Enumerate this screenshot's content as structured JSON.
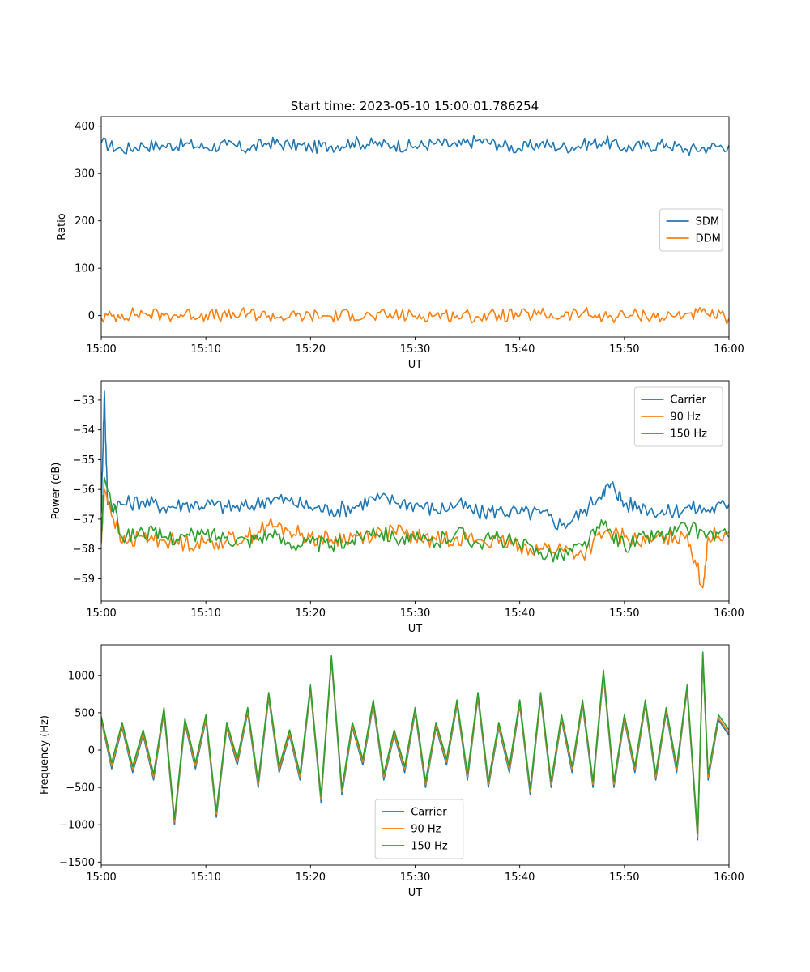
{
  "figure": {
    "title": "Start time: 2023-05-10 15:00:01.786254"
  },
  "colors": {
    "blue": "#1f77b4",
    "orange": "#ff7f0e",
    "green": "#2ca02c"
  },
  "chart_data": [
    {
      "type": "line",
      "title": "Start time: 2023-05-10 15:00:01.786254",
      "xlabel": "UT",
      "ylabel": "Ratio",
      "x_range": [
        "15:00",
        "16:00"
      ],
      "xticks": [
        "15:00",
        "15:10",
        "15:20",
        "15:30",
        "15:40",
        "15:50",
        "16:00"
      ],
      "ylim": [
        -45,
        420
      ],
      "yticks": [
        0,
        100,
        200,
        300,
        400
      ],
      "legend_position": "center-right",
      "grid": false,
      "series": [
        {
          "name": "SDM",
          "color": "#1f77b4",
          "x_minutes": [
            0,
            2,
            4,
            6,
            8,
            10,
            12,
            14,
            16,
            18,
            20,
            22,
            24,
            26,
            28,
            30,
            32,
            34,
            36,
            38,
            40,
            42,
            44,
            46,
            48,
            50,
            52,
            54,
            56,
            58,
            60
          ],
          "values": [
            365,
            350,
            360,
            358,
            362,
            355,
            360,
            352,
            365,
            360,
            355,
            358,
            366,
            362,
            360,
            357,
            364,
            358,
            370,
            361,
            352,
            363,
            355,
            360,
            368,
            354,
            358,
            362,
            350,
            355,
            360
          ]
        },
        {
          "name": "DDM",
          "color": "#ff7f0e",
          "x_minutes": [
            0,
            2,
            4,
            6,
            8,
            10,
            12,
            14,
            16,
            18,
            20,
            22,
            24,
            26,
            28,
            30,
            32,
            34,
            36,
            38,
            40,
            42,
            44,
            46,
            48,
            50,
            52,
            54,
            56,
            58,
            60
          ],
          "values": [
            -5,
            2,
            5,
            0,
            3,
            2,
            -2,
            4,
            0,
            -3,
            0,
            -2,
            3,
            -2,
            1,
            -1,
            2,
            0,
            -2,
            1,
            0,
            3,
            -1,
            5,
            -3,
            0,
            2,
            -4,
            5,
            2,
            -5
          ]
        }
      ]
    },
    {
      "type": "line",
      "xlabel": "UT",
      "ylabel": "Power (dB)",
      "x_range": [
        "15:00",
        "16:00"
      ],
      "xticks": [
        "15:00",
        "15:10",
        "15:20",
        "15:30",
        "15:40",
        "15:50",
        "16:00"
      ],
      "ylim": [
        -59.75,
        -52.35
      ],
      "yticks": [
        -53,
        -54,
        -55,
        -56,
        -57,
        -58,
        -59
      ],
      "legend_position": "upper-right",
      "grid": false,
      "series": [
        {
          "name": "Carrier",
          "color": "#1f77b4",
          "x_minutes": [
            0,
            0.3,
            0.6,
            2,
            4,
            6,
            8,
            10,
            12,
            14,
            16,
            18,
            20,
            22,
            24,
            26,
            28,
            30,
            32,
            34,
            36,
            38,
            40,
            42,
            44,
            46,
            48,
            49,
            50,
            52,
            54,
            56,
            58,
            60
          ],
          "values": [
            -56.8,
            -52.7,
            -56.5,
            -56.5,
            -56.4,
            -56.6,
            -56.5,
            -56.5,
            -56.6,
            -56.6,
            -56.3,
            -56.4,
            -56.6,
            -56.7,
            -56.6,
            -56.3,
            -56.4,
            -56.5,
            -56.7,
            -56.5,
            -56.8,
            -56.7,
            -56.8,
            -56.8,
            -57.2,
            -56.8,
            -56.0,
            -55.9,
            -56.5,
            -56.6,
            -56.8,
            -56.6,
            -56.7,
            -56.5
          ]
        },
        {
          "name": "90 Hz",
          "color": "#ff7f0e",
          "x_minutes": [
            0,
            0.3,
            2,
            4,
            6,
            8,
            10,
            12,
            14,
            16,
            18,
            20,
            22,
            24,
            26,
            28,
            30,
            32,
            34,
            36,
            38,
            40,
            42,
            44,
            46,
            48,
            50,
            52,
            54,
            56,
            57.5,
            58,
            60
          ],
          "values": [
            -57.8,
            -56.0,
            -57.8,
            -57.6,
            -57.7,
            -57.8,
            -57.8,
            -57.7,
            -57.6,
            -57.2,
            -57.4,
            -57.6,
            -57.7,
            -57.6,
            -57.5,
            -57.4,
            -57.6,
            -57.7,
            -57.6,
            -57.7,
            -57.8,
            -57.9,
            -58.0,
            -58.0,
            -58.2,
            -57.5,
            -57.6,
            -57.8,
            -57.6,
            -57.5,
            -59.3,
            -57.6,
            -57.4
          ]
        },
        {
          "name": "150 Hz",
          "color": "#2ca02c",
          "x_minutes": [
            0,
            0.3,
            2,
            4,
            6,
            8,
            10,
            12,
            14,
            16,
            18,
            20,
            22,
            24,
            26,
            28,
            30,
            32,
            34,
            36,
            38,
            40,
            42,
            44,
            46,
            48,
            50,
            52,
            54,
            56,
            58,
            60
          ],
          "values": [
            -57.8,
            -55.6,
            -57.6,
            -57.4,
            -57.6,
            -57.6,
            -57.5,
            -57.6,
            -57.7,
            -57.5,
            -57.8,
            -57.8,
            -57.9,
            -57.7,
            -57.3,
            -57.6,
            -57.7,
            -57.8,
            -57.4,
            -57.8,
            -57.6,
            -57.9,
            -58.1,
            -58.2,
            -57.9,
            -57.2,
            -57.9,
            -57.6,
            -57.5,
            -57.3,
            -57.5,
            -57.6
          ]
        }
      ]
    },
    {
      "type": "line",
      "xlabel": "UT",
      "ylabel": "Frequency (Hz)",
      "x_range": [
        "15:00",
        "16:00"
      ],
      "xticks": [
        "15:00",
        "15:10",
        "15:20",
        "15:30",
        "15:40",
        "15:50",
        "16:00"
      ],
      "ylim": [
        -1540,
        1410
      ],
      "yticks": [
        1000,
        500,
        0,
        -500,
        -1000,
        -1500
      ],
      "legend_position": "lower-center",
      "grid": false,
      "series": [
        {
          "name": "Carrier",
          "color": "#1f77b4",
          "x_minutes": [
            0,
            1,
            2,
            3,
            4,
            5,
            6,
            7,
            8,
            9,
            10,
            11,
            12,
            13,
            14,
            15,
            16,
            17,
            18,
            19,
            20,
            21,
            22,
            23,
            24,
            25,
            26,
            27,
            28,
            29,
            30,
            31,
            32,
            33,
            34,
            35,
            36,
            37,
            38,
            39,
            40,
            41,
            42,
            43,
            44,
            45,
            46,
            47,
            48,
            49,
            50,
            51,
            52,
            53,
            54,
            55,
            56,
            57,
            57.5,
            58,
            59,
            60
          ],
          "values": [
            400,
            -250,
            300,
            -300,
            200,
            -400,
            500,
            -1000,
            350,
            -250,
            400,
            -900,
            300,
            -200,
            500,
            -500,
            700,
            -300,
            200,
            -400,
            800,
            -700,
            1200,
            -600,
            300,
            -200,
            600,
            -400,
            200,
            -300,
            500,
            -500,
            300,
            -200,
            600,
            -400,
            700,
            -500,
            300,
            -300,
            600,
            -600,
            700,
            -500,
            400,
            -300,
            600,
            -500,
            1000,
            -500,
            400,
            -300,
            600,
            -400,
            500,
            -300,
            800,
            -1200,
            1250,
            -400,
            400,
            200
          ]
        },
        {
          "name": "90 Hz",
          "color": "#ff7f0e",
          "x_minutes": [
            0,
            1,
            2,
            3,
            4,
            5,
            6,
            7,
            8,
            9,
            10,
            11,
            12,
            13,
            14,
            15,
            16,
            17,
            18,
            19,
            20,
            21,
            22,
            23,
            24,
            25,
            26,
            27,
            28,
            29,
            30,
            31,
            32,
            33,
            34,
            35,
            36,
            37,
            38,
            39,
            40,
            41,
            42,
            43,
            44,
            45,
            46,
            47,
            48,
            49,
            50,
            51,
            52,
            53,
            54,
            55,
            56,
            57,
            57.5,
            58,
            59,
            60
          ],
          "values": [
            420,
            -210,
            330,
            -260,
            230,
            -360,
            530,
            -960,
            380,
            -210,
            430,
            -860,
            330,
            -160,
            530,
            -460,
            730,
            -260,
            230,
            -360,
            830,
            -660,
            1230,
            -560,
            330,
            -160,
            630,
            -360,
            230,
            -260,
            530,
            -460,
            330,
            -160,
            630,
            -360,
            730,
            -460,
            330,
            -260,
            630,
            -560,
            730,
            -460,
            430,
            -260,
            630,
            -460,
            1030,
            -460,
            430,
            -260,
            630,
            -360,
            530,
            -260,
            830,
            -1160,
            1280,
            -360,
            430,
            230
          ]
        },
        {
          "name": "150 Hz",
          "color": "#2ca02c",
          "x_minutes": [
            0,
            1,
            2,
            3,
            4,
            5,
            6,
            7,
            8,
            9,
            10,
            11,
            12,
            13,
            14,
            15,
            16,
            17,
            18,
            19,
            20,
            21,
            22,
            23,
            24,
            25,
            26,
            27,
            28,
            29,
            30,
            31,
            32,
            33,
            34,
            35,
            36,
            37,
            38,
            39,
            40,
            41,
            42,
            43,
            44,
            45,
            46,
            47,
            48,
            49,
            50,
            51,
            52,
            53,
            54,
            55,
            56,
            57,
            57.5,
            58,
            59,
            60
          ],
          "values": [
            450,
            -170,
            370,
            -220,
            270,
            -320,
            570,
            -920,
            420,
            -170,
            470,
            -820,
            370,
            -120,
            570,
            -420,
            770,
            -220,
            270,
            -320,
            870,
            -620,
            1260,
            -520,
            370,
            -120,
            670,
            -320,
            270,
            -220,
            570,
            -420,
            370,
            -120,
            670,
            -320,
            770,
            -420,
            370,
            -220,
            670,
            -520,
            770,
            -420,
            470,
            -220,
            670,
            -420,
            1070,
            -420,
            470,
            -220,
            670,
            -320,
            570,
            -220,
            870,
            -1120,
            1310,
            -320,
            470,
            270
          ]
        }
      ]
    }
  ]
}
